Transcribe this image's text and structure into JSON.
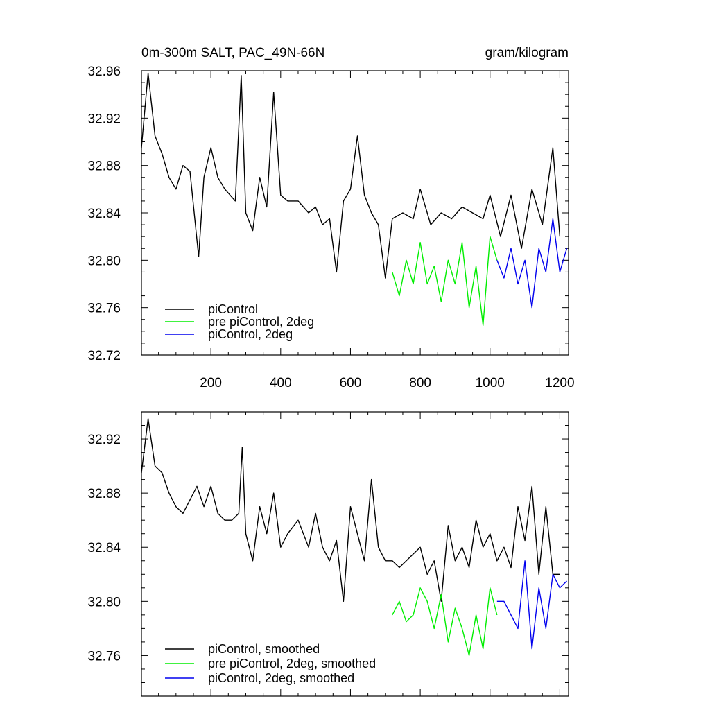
{
  "chart_data": [
    {
      "type": "line",
      "title": "0m-300m SALT, PAC_49N-66N",
      "units": "gram/kilogram",
      "xlabel": "",
      "ylabel": "",
      "xlim": [
        1,
        1225
      ],
      "ylim": [
        32.72,
        32.96
      ],
      "xticks": [
        200,
        400,
        600,
        800,
        1000,
        1200
      ],
      "yticks": [
        32.72,
        32.76,
        32.8,
        32.84,
        32.88,
        32.92,
        32.96
      ],
      "ytick_labels": [
        "32.72",
        "32.76",
        "32.80",
        "32.84",
        "32.88",
        "32.92",
        "32.96"
      ],
      "xtick_labels": [
        "200",
        "400",
        "600",
        "800",
        "1000",
        "1200"
      ],
      "legend_position": "bottom-left",
      "series": [
        {
          "name": "piControl",
          "color": "#000000",
          "x": [
            1,
            20,
            40,
            60,
            80,
            100,
            120,
            140,
            165,
            180,
            200,
            220,
            240,
            270,
            287,
            300,
            320,
            340,
            360,
            380,
            400,
            420,
            450,
            480,
            500,
            520,
            540,
            560,
            580,
            600,
            620,
            640,
            660,
            680,
            700,
            720,
            750,
            780,
            800,
            830,
            860,
            890,
            920,
            950,
            980,
            1000,
            1030,
            1060,
            1090,
            1120,
            1150,
            1180,
            1200
          ],
          "y": [
            32.895,
            32.958,
            32.905,
            32.89,
            32.87,
            32.86,
            32.88,
            32.875,
            32.803,
            32.87,
            32.895,
            32.87,
            32.86,
            32.85,
            32.956,
            32.84,
            32.825,
            32.87,
            32.845,
            32.942,
            32.855,
            32.85,
            32.85,
            32.84,
            32.845,
            32.83,
            32.835,
            32.79,
            32.85,
            32.86,
            32.905,
            32.855,
            32.84,
            32.83,
            32.785,
            32.835,
            32.84,
            32.835,
            32.86,
            32.83,
            32.84,
            32.835,
            32.845,
            32.84,
            32.835,
            32.855,
            32.82,
            32.855,
            32.81,
            32.86,
            32.83,
            32.895,
            32.82
          ]
        },
        {
          "name": "pre piControl, 2deg",
          "color": "#00ee00",
          "x": [
            720,
            740,
            760,
            780,
            800,
            820,
            840,
            860,
            880,
            900,
            920,
            940,
            960,
            980,
            1000,
            1020
          ],
          "y": [
            32.79,
            32.77,
            32.8,
            32.78,
            32.815,
            32.78,
            32.795,
            32.765,
            32.8,
            32.78,
            32.815,
            32.76,
            32.795,
            32.745,
            32.82,
            32.8
          ]
        },
        {
          "name": "piControl, 2deg",
          "color": "#0000ee",
          "x": [
            1020,
            1040,
            1060,
            1080,
            1100,
            1120,
            1140,
            1160,
            1180,
            1200,
            1220
          ],
          "y": [
            32.8,
            32.785,
            32.81,
            32.78,
            32.8,
            32.76,
            32.81,
            32.79,
            32.835,
            32.79,
            32.81
          ]
        }
      ]
    },
    {
      "type": "line",
      "title": "",
      "xlabel": "",
      "ylabel": "",
      "xlim": [
        1,
        1225
      ],
      "ylim": [
        32.73,
        32.94
      ],
      "xticks": [
        200,
        400,
        600,
        800,
        1000,
        1200
      ],
      "yticks": [
        32.76,
        32.8,
        32.84,
        32.88,
        32.92
      ],
      "ytick_labels": [
        "32.76",
        "32.80",
        "32.84",
        "32.88",
        "32.92"
      ],
      "legend_position": "bottom-left",
      "series": [
        {
          "name": "piControl, smoothed",
          "color": "#000000",
          "x": [
            1,
            20,
            40,
            60,
            80,
            100,
            120,
            140,
            160,
            180,
            200,
            220,
            240,
            260,
            280,
            290,
            300,
            320,
            340,
            360,
            380,
            400,
            420,
            450,
            480,
            500,
            520,
            540,
            560,
            580,
            600,
            620,
            640,
            660,
            680,
            700,
            720,
            740,
            760,
            780,
            800,
            820,
            840,
            860,
            880,
            900,
            920,
            940,
            960,
            980,
            1000,
            1020,
            1040,
            1060,
            1080,
            1100,
            1120,
            1140,
            1160,
            1180,
            1200
          ],
          "y": [
            32.895,
            32.935,
            32.9,
            32.895,
            32.88,
            32.87,
            32.865,
            32.875,
            32.885,
            32.87,
            32.885,
            32.865,
            32.86,
            32.86,
            32.865,
            32.914,
            32.85,
            32.83,
            32.87,
            32.85,
            32.88,
            32.84,
            32.85,
            32.86,
            32.84,
            32.865,
            32.84,
            32.83,
            32.845,
            32.8,
            32.87,
            32.85,
            32.83,
            32.89,
            32.84,
            32.83,
            32.83,
            32.825,
            32.83,
            32.835,
            32.84,
            32.82,
            32.83,
            32.8,
            32.856,
            32.83,
            32.84,
            32.825,
            32.86,
            32.84,
            32.85,
            32.83,
            32.84,
            32.825,
            32.87,
            32.845,
            32.885,
            32.82,
            32.87,
            32.82,
            32.82
          ]
        },
        {
          "name": "pre piControl, 2deg, smoothed",
          "color": "#00ee00",
          "x": [
            720,
            740,
            760,
            780,
            800,
            820,
            840,
            860,
            880,
            900,
            920,
            940,
            960,
            980,
            1000,
            1020
          ],
          "y": [
            32.79,
            32.8,
            32.785,
            32.79,
            32.81,
            32.8,
            32.78,
            32.805,
            32.77,
            32.795,
            32.78,
            32.76,
            32.79,
            32.765,
            32.81,
            32.79
          ]
        },
        {
          "name": "piControl, 2deg, smoothed",
          "color": "#0000ee",
          "x": [
            1020,
            1040,
            1060,
            1080,
            1100,
            1120,
            1140,
            1160,
            1180,
            1200,
            1220
          ],
          "y": [
            32.8,
            32.8,
            32.79,
            32.78,
            32.83,
            32.765,
            32.81,
            32.78,
            32.82,
            32.81,
            32.815
          ]
        }
      ]
    }
  ]
}
